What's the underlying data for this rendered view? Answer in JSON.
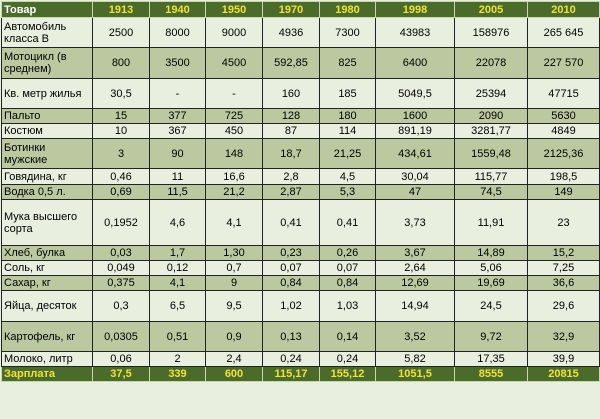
{
  "table": {
    "headers": [
      "Товар",
      "1913",
      "1940",
      "1950",
      "1970",
      "1980",
      "1998",
      "2005",
      "2010"
    ],
    "rows": [
      {
        "name": "Автомобиль класса В",
        "values": [
          "2500",
          "8000",
          "9000",
          "4936",
          "7300",
          "43983",
          "158976",
          "265 645"
        ]
      },
      {
        "name": "Мотоцикл (в среднем)",
        "values": [
          "800",
          "3500",
          "4500",
          "592,85",
          "825",
          "6400",
          "22078",
          "227 570"
        ]
      },
      {
        "name": "Кв. метр жилья",
        "values": [
          "30,5",
          "-",
          "-",
          "160",
          "185",
          "5049,5",
          "25394",
          "47715"
        ]
      },
      {
        "name": "Пальто",
        "values": [
          "15",
          "377",
          "725",
          "128",
          "180",
          "1600",
          "2090",
          "5630"
        ]
      },
      {
        "name": "Костюм",
        "values": [
          "10",
          "367",
          "450",
          "87",
          "114",
          "891,19",
          "3281,77",
          "4849"
        ]
      },
      {
        "name": "Ботинки мужские",
        "values": [
          "3",
          "90",
          "148",
          "18,7",
          "21,25",
          "434,61",
          "1559,48",
          "2125,36"
        ]
      },
      {
        "name": "Говядина, кг",
        "values": [
          "0,46",
          "11",
          "16,6",
          "2,8",
          "4,5",
          "30,04",
          "115,77",
          "198,5"
        ]
      },
      {
        "name": "Водка 0,5 л.",
        "values": [
          "0,69",
          "11,5",
          "21,2",
          "2,87",
          "5,3",
          "47",
          "74,5",
          "149"
        ]
      },
      {
        "name": "Мука высшего сорта",
        "values": [
          "0,1952",
          "4,6",
          "4,1",
          "0,41",
          "0,41",
          "3,73",
          "11,91",
          "23"
        ]
      },
      {
        "name": "Хлеб, булка",
        "values": [
          "0,03",
          "1,7",
          "1,30",
          "0,23",
          "0,26",
          "3,67",
          "14,89",
          "15,2"
        ]
      },
      {
        "name": "Соль, кг",
        "values": [
          "0,049",
          "0,12",
          "0,7",
          "0,07",
          "0,07",
          "2,64",
          "5,06",
          "7,25"
        ]
      },
      {
        "name": "Сахар, кг",
        "values": [
          "0,375",
          "4,1",
          "9",
          "0,84",
          "0,84",
          "12,69",
          "19,69",
          "36,6"
        ]
      },
      {
        "name": "Яйца, десяток",
        "values": [
          "0,3",
          "6,5",
          "9,5",
          "1,02",
          "1,03",
          "14,94",
          "24,5",
          "29,6"
        ]
      },
      {
        "name": "Картофель, кг",
        "values": [
          "0,0305",
          "0,51",
          "0,9",
          "0,13",
          "0,14",
          "3,52",
          "9,72",
          "32,9"
        ]
      },
      {
        "name": "Молоко, литр",
        "values": [
          "0,06",
          "2",
          "2,4",
          "0,24",
          "0,24",
          "5,82",
          "17,35",
          "39,9"
        ]
      }
    ],
    "footer": {
      "name": "Зарплата",
      "values": [
        "37,5",
        "339",
        "600",
        "115,17",
        "155,12",
        "1051,5",
        "8555",
        "20815"
      ]
    }
  },
  "colors": {
    "header_bg": "#4b6b2b",
    "header_text": "#f2e23a",
    "row_light": "#e9efdf",
    "row_dark": "#bcc9a0"
  }
}
